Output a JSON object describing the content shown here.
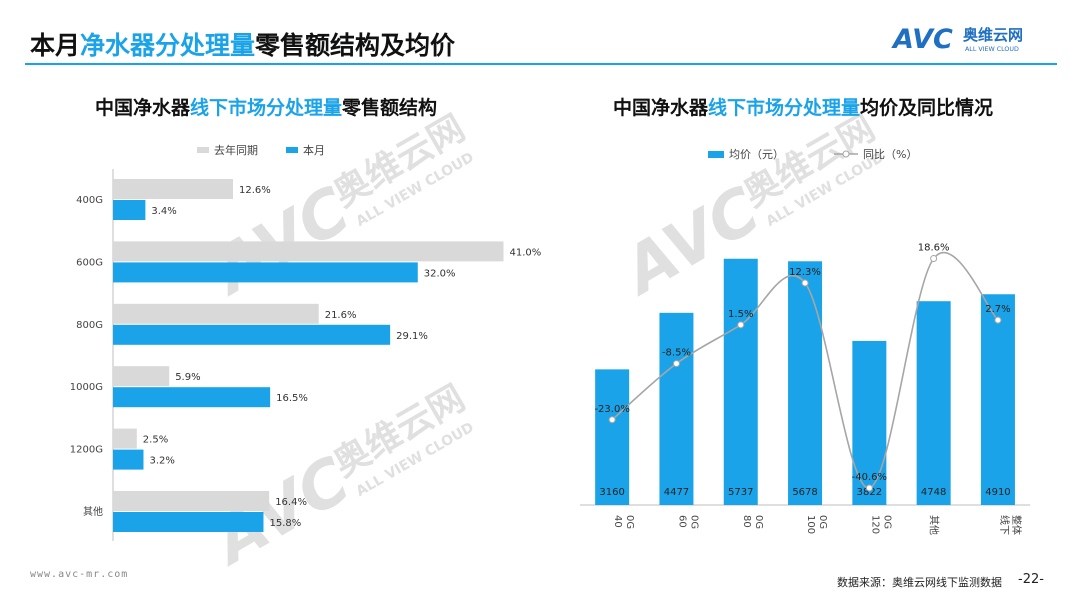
{
  "header": {
    "title_pre": "本月",
    "title_hl": "净水器分处理量",
    "title_post": "零售额结构及均价",
    "logo_text": "AVC",
    "logo_cn": "奥维云网",
    "logo_en": "ALL VIEW CLOUD"
  },
  "watermark": {
    "mark": "AVC",
    "cn": "奥维云网",
    "en": "ALL VIEW CLOUD"
  },
  "left_title": {
    "pre": "中国净水器",
    "hl": "线下市场分处理量",
    "post": "零售额结构"
  },
  "right_title": {
    "pre": "中国净水器",
    "hl": "线下市场分处理量",
    "post": "均价及同比情况"
  },
  "colors": {
    "accent": "#1aa3e8",
    "grey": "#d9d9d9",
    "line": "#a6a6a6"
  },
  "chart_data": [
    {
      "type": "bar",
      "orientation": "horizontal",
      "categories": [
        "400G",
        "600G",
        "800G",
        "1000G",
        "1200G",
        "其他"
      ],
      "series": [
        {
          "name": "去年同期",
          "values": [
            12.6,
            41.0,
            21.6,
            5.9,
            2.5,
            16.4
          ],
          "labels": [
            "12.6%",
            "41.0%",
            "21.6%",
            "5.9%",
            "2.5%",
            "16.4%"
          ],
          "color": "#d9d9d9"
        },
        {
          "name": "本月",
          "values": [
            3.4,
            32.0,
            29.1,
            16.5,
            3.2,
            15.8
          ],
          "labels": [
            "3.4%",
            "32.0%",
            "29.1%",
            "16.5%",
            "3.2%",
            "15.8%"
          ],
          "color": "#1aa3e8"
        }
      ],
      "xlim": [
        0,
        42
      ],
      "grid": false,
      "legend": "top"
    },
    {
      "type": "bar",
      "categories": [
        "400G",
        "600G",
        "800G",
        "1000G",
        "1200G",
        "其他",
        "线下整体"
      ],
      "series": [
        {
          "name": "均价（元）",
          "values": [
            3160,
            4477,
            5737,
            5678,
            3822,
            4748,
            4910
          ],
          "color": "#1aa3e8"
        },
        {
          "name": "同比（%）",
          "type": "line",
          "values": [
            -23.0,
            -8.5,
            1.5,
            12.3,
            -40.6,
            18.6,
            2.7
          ],
          "labels": [
            "-23.0%",
            "-8.5%",
            "1.5%",
            "12.3%",
            "-40.6%",
            "18.6%",
            "2.7%"
          ],
          "color": "#a6a6a6"
        }
      ],
      "ylim": [
        0,
        6500
      ],
      "y2lim": [
        -45,
        27
      ],
      "grid": false,
      "legend": "top"
    }
  ],
  "footer": {
    "url": "www.avc-mr.com",
    "source": "数据来源：奥维云网线下监测数据",
    "page": "-22-"
  }
}
